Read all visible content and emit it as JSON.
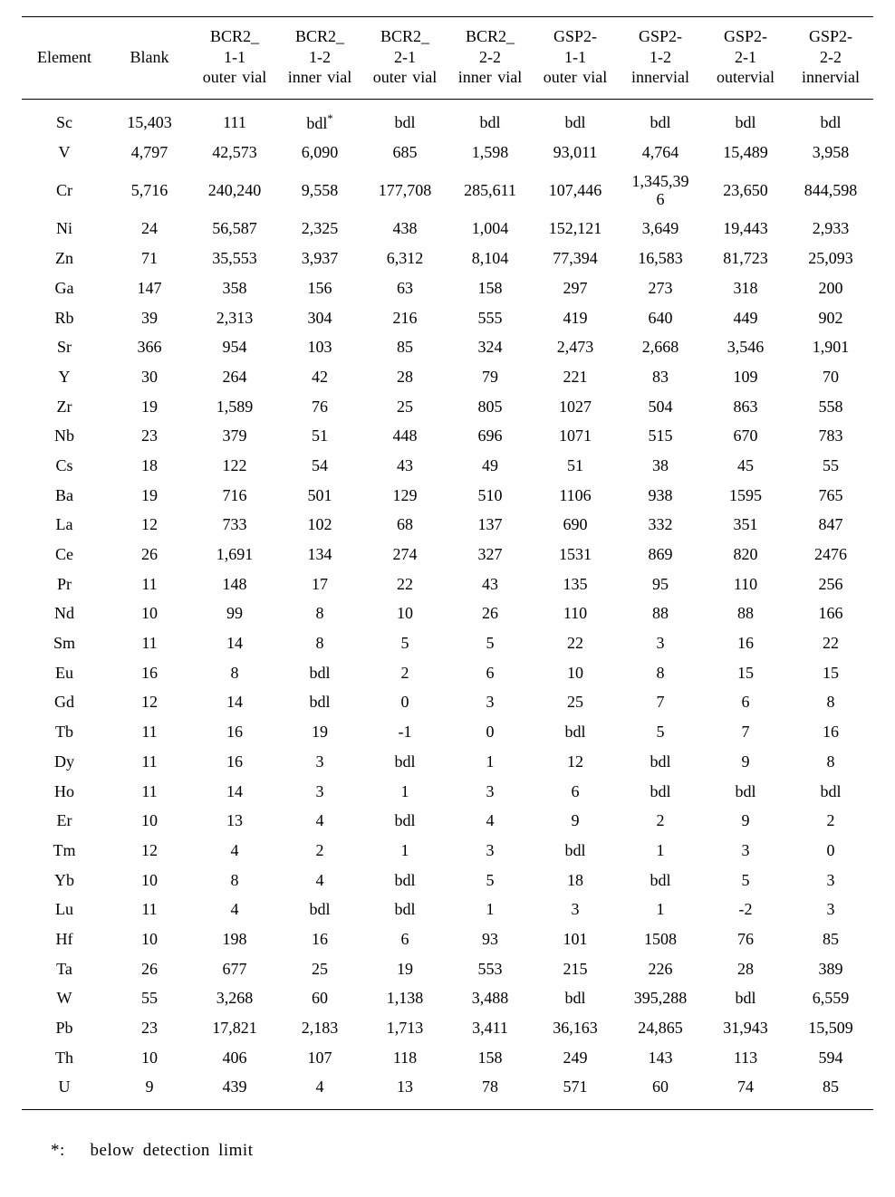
{
  "colors": {
    "background": "#ffffff",
    "text": "#000000",
    "rule": "#000000"
  },
  "typography": {
    "font_family": "Times New Roman / Batang serif",
    "header_fontsize_pt": 13,
    "body_fontsize_pt": 13,
    "footnote_fontsize_pt": 14
  },
  "table": {
    "columns": [
      "Element",
      "Blank",
      "BCR2_\n1-1\nouter vial",
      "BCR2_\n1-2\ninner vial",
      "BCR2_\n2-1\nouter vial",
      "BCR2_\n2-2\ninner vial",
      "GSP2-\n1-1\nouter vial",
      "GSP2-\n1-2\ninnervial",
      "GSP2-\n2-1\noutervial",
      "GSP2-\n2-2\ninnervial"
    ],
    "rows": [
      [
        "Sc",
        "15,403",
        "111",
        "bdl*",
        "bdl",
        "bdl",
        "bdl",
        "bdl",
        "bdl",
        "bdl"
      ],
      [
        "V",
        "4,797",
        "42,573",
        "6,090",
        "685",
        "1,598",
        "93,011",
        "4,764",
        "15,489",
        "3,958"
      ],
      [
        "Cr",
        "5,716",
        "240,240",
        "9,558",
        "177,708",
        "285,611",
        "107,446",
        "1,345,39\n6",
        "23,650",
        "844,598"
      ],
      [
        "Ni",
        "24",
        "56,587",
        "2,325",
        "438",
        "1,004",
        "152,121",
        "3,649",
        "19,443",
        "2,933"
      ],
      [
        "Zn",
        "71",
        "35,553",
        "3,937",
        "6,312",
        "8,104",
        "77,394",
        "16,583",
        "81,723",
        "25,093"
      ],
      [
        "Ga",
        "147",
        "358",
        "156",
        "63",
        "158",
        "297",
        "273",
        "318",
        "200"
      ],
      [
        "Rb",
        "39",
        "2,313",
        "304",
        "216",
        "555",
        "419",
        "640",
        "449",
        "902"
      ],
      [
        "Sr",
        "366",
        "954",
        "103",
        "85",
        "324",
        "2,473",
        "2,668",
        "3,546",
        "1,901"
      ],
      [
        "Y",
        "30",
        "264",
        "42",
        "28",
        "79",
        "221",
        "83",
        "109",
        "70"
      ],
      [
        "Zr",
        "19",
        "1,589",
        "76",
        "25",
        "805",
        "1027",
        "504",
        "863",
        "558"
      ],
      [
        "Nb",
        "23",
        "379",
        "51",
        "448",
        "696",
        "1071",
        "515",
        "670",
        "783"
      ],
      [
        "Cs",
        "18",
        "122",
        "54",
        "43",
        "49",
        "51",
        "38",
        "45",
        "55"
      ],
      [
        "Ba",
        "19",
        "716",
        "501",
        "129",
        "510",
        "1106",
        "938",
        "1595",
        "765"
      ],
      [
        "La",
        "12",
        "733",
        "102",
        "68",
        "137",
        "690",
        "332",
        "351",
        "847"
      ],
      [
        "Ce",
        "26",
        "1,691",
        "134",
        "274",
        "327",
        "1531",
        "869",
        "820",
        "2476"
      ],
      [
        "Pr",
        "11",
        "148",
        "17",
        "22",
        "43",
        "135",
        "95",
        "110",
        "256"
      ],
      [
        "Nd",
        "10",
        "99",
        "8",
        "10",
        "26",
        "110",
        "88",
        "88",
        "166"
      ],
      [
        "Sm",
        "11",
        "14",
        "8",
        "5",
        "5",
        "22",
        "3",
        "16",
        "22"
      ],
      [
        "Eu",
        "16",
        "8",
        "bdl",
        "2",
        "6",
        "10",
        "8",
        "15",
        "15"
      ],
      [
        "Gd",
        "12",
        "14",
        "bdl",
        "0",
        "3",
        "25",
        "7",
        "6",
        "8"
      ],
      [
        "Tb",
        "11",
        "16",
        "19",
        "-1",
        "0",
        "bdl",
        "5",
        "7",
        "16"
      ],
      [
        "Dy",
        "11",
        "16",
        "3",
        "bdl",
        "1",
        "12",
        "bdl",
        "9",
        "8"
      ],
      [
        "Ho",
        "11",
        "14",
        "3",
        "1",
        "3",
        "6",
        "bdl",
        "bdl",
        "bdl"
      ],
      [
        "Er",
        "10",
        "13",
        "4",
        "bdl",
        "4",
        "9",
        "2",
        "9",
        "2"
      ],
      [
        "Tm",
        "12",
        "4",
        "2",
        "1",
        "3",
        "bdl",
        "1",
        "3",
        "0"
      ],
      [
        "Yb",
        "10",
        "8",
        "4",
        "bdl",
        "5",
        "18",
        "bdl",
        "5",
        "3"
      ],
      [
        "Lu",
        "11",
        "4",
        "bdl",
        "bdl",
        "1",
        "3",
        "1",
        "-2",
        "3"
      ],
      [
        "Hf",
        "10",
        "198",
        "16",
        "6",
        "93",
        "101",
        "1508",
        "76",
        "85"
      ],
      [
        "Ta",
        "26",
        "677",
        "25",
        "19",
        "553",
        "215",
        "226",
        "28",
        "389"
      ],
      [
        "W",
        "55",
        "3,268",
        "60",
        "1,138",
        "3,488",
        "bdl",
        "395,288",
        "bdl",
        "6,559"
      ],
      [
        "Pb",
        "23",
        "17,821",
        "2,183",
        "1,713",
        "3,411",
        "36,163",
        "24,865",
        "31,943",
        "15,509"
      ],
      [
        "Th",
        "10",
        "406",
        "107",
        "118",
        "158",
        "249",
        "143",
        "113",
        "594"
      ],
      [
        "U",
        "9",
        "439",
        "4",
        "13",
        "78",
        "571",
        "60",
        "74",
        "85"
      ]
    ],
    "column_widths_pct": [
      10,
      10,
      10,
      10,
      10,
      10,
      10,
      10,
      10,
      10
    ],
    "rule_style": "top-bottom-header-and-bottom-table"
  },
  "footnote": {
    "marker": "*:",
    "text": "below detection limit"
  }
}
